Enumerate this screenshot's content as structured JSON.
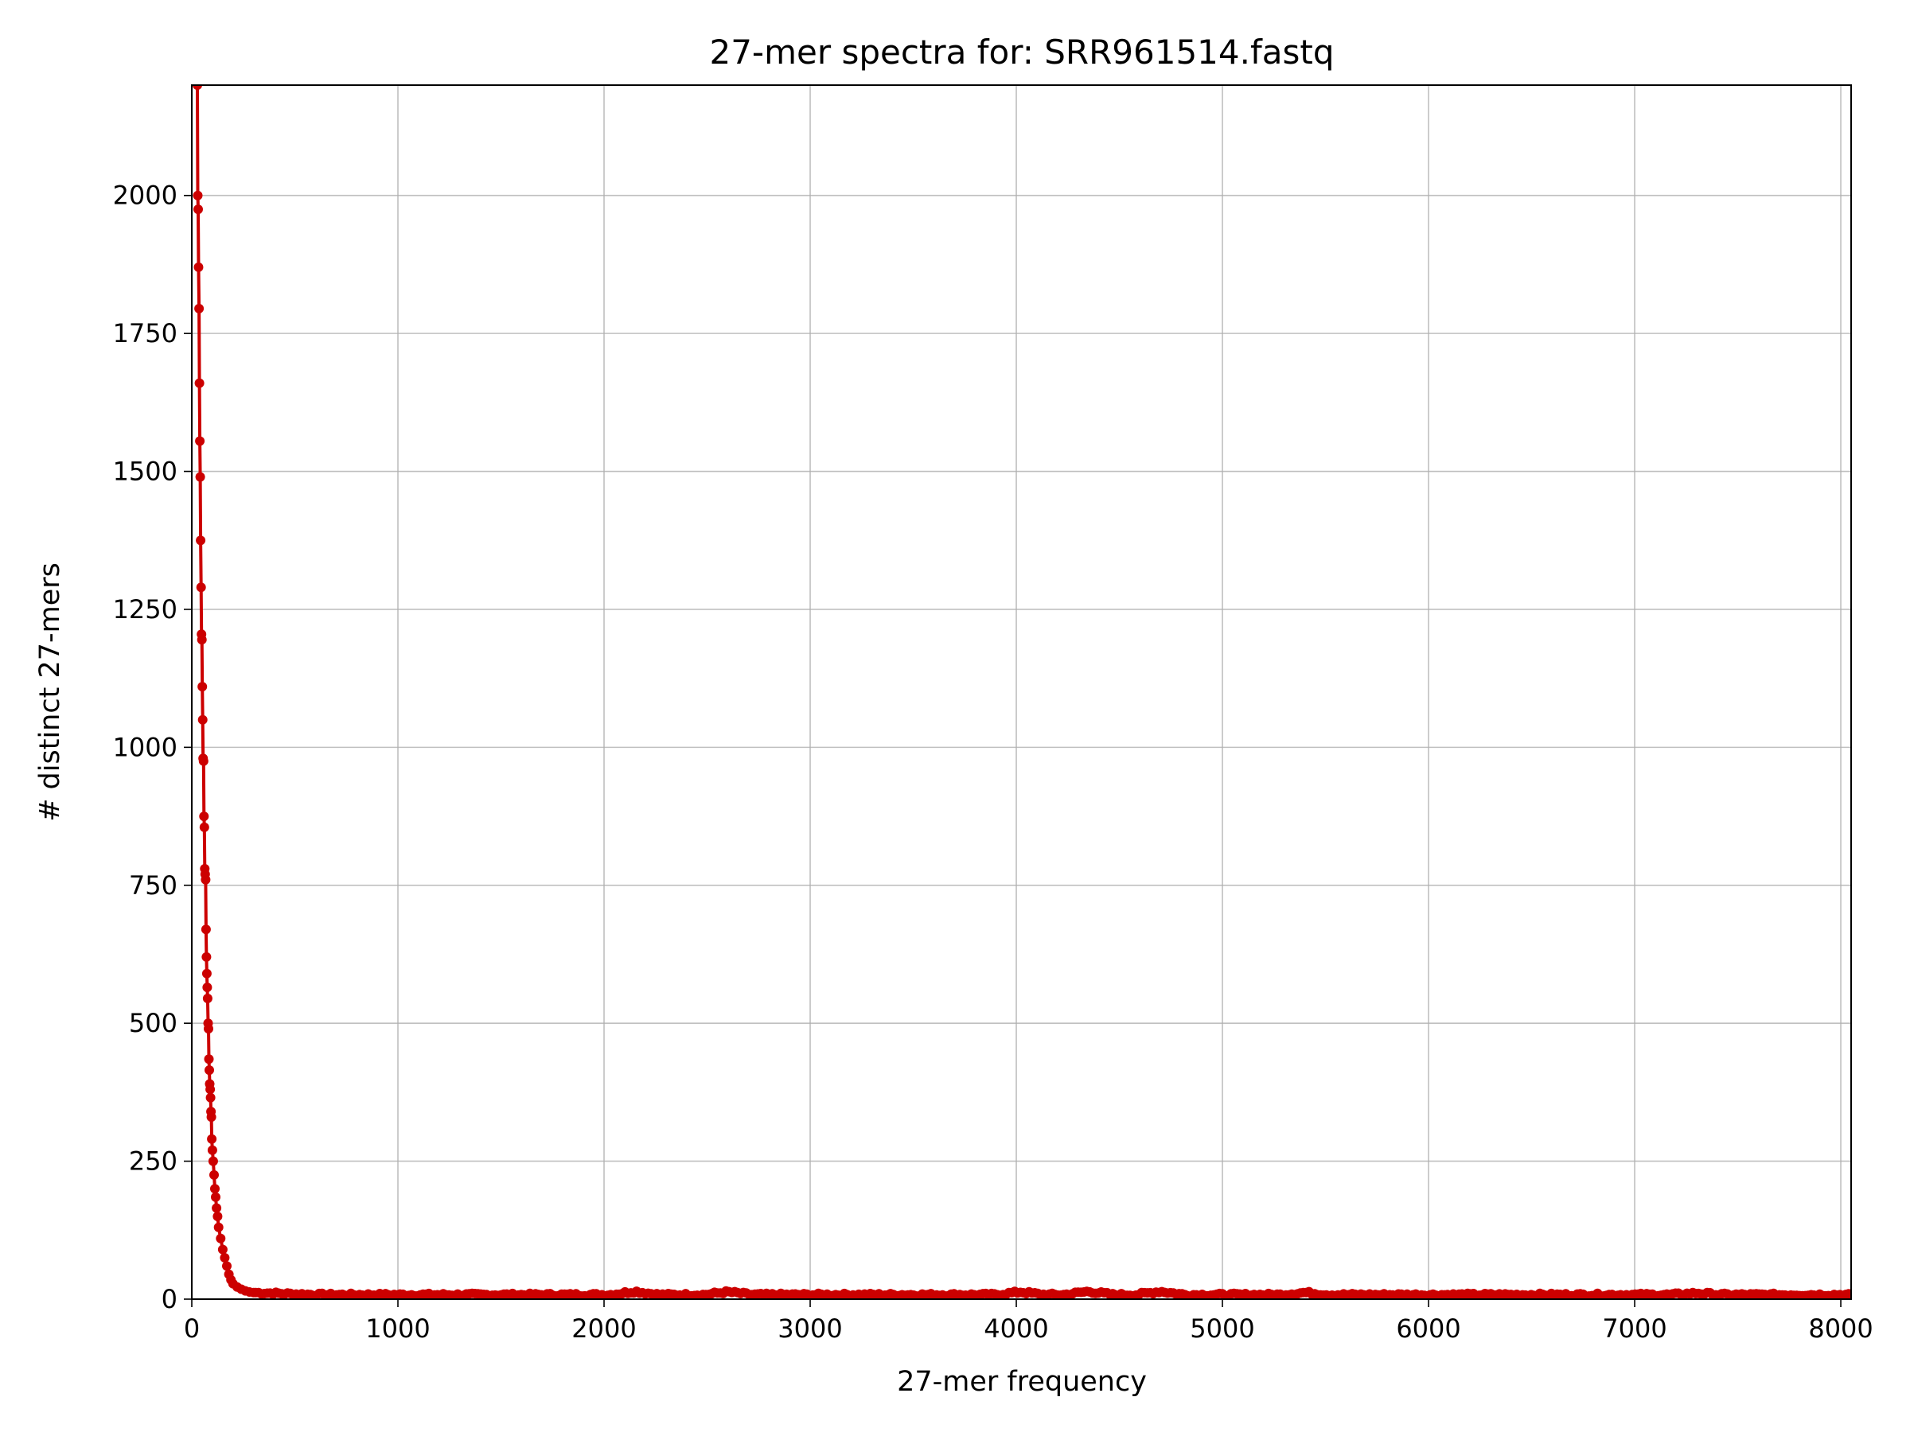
{
  "chart_data": {
    "type": "line",
    "title": "27-mer spectra for: SRR961514.fastq",
    "xlabel": "27-mer frequency",
    "ylabel": "# distinct 27-mers",
    "xlim": [
      0,
      8050
    ],
    "ylim": [
      0,
      2200
    ],
    "x_ticks": [
      0,
      1000,
      2000,
      3000,
      4000,
      5000,
      6000,
      7000,
      8000
    ],
    "y_ticks": [
      0,
      250,
      500,
      750,
      1000,
      1250,
      1500,
      1750,
      2000
    ],
    "grid": true,
    "markers": true,
    "color": "#cc0000",
    "peak_series": {
      "x": [
        27,
        29,
        31,
        33,
        35,
        37,
        39,
        41,
        43,
        45,
        47,
        49,
        51,
        53,
        55,
        57,
        59,
        61,
        63,
        65,
        67,
        69,
        71,
        73,
        75,
        77,
        79,
        81,
        83,
        85,
        87,
        89,
        91,
        93,
        95,
        97,
        100,
        104,
        108,
        112,
        116,
        120,
        125,
        130,
        140,
        150,
        160,
        170,
        180,
        190,
        200,
        220,
        240,
        260,
        280,
        300
      ],
      "values": [
        2200,
        2000,
        1975,
        1870,
        1795,
        1660,
        1555,
        1490,
        1375,
        1290,
        1205,
        1195,
        1110,
        1050,
        980,
        975,
        875,
        855,
        780,
        770,
        760,
        670,
        620,
        590,
        565,
        545,
        500,
        490,
        435,
        415,
        390,
        380,
        365,
        340,
        330,
        290,
        270,
        250,
        225,
        200,
        185,
        165,
        150,
        130,
        110,
        90,
        75,
        60,
        45,
        35,
        28,
        22,
        18,
        15,
        13,
        12
      ]
    },
    "tail_level_approx": 8,
    "tail_bumps": [
      {
        "x": 2150,
        "value": 14
      },
      {
        "x": 2600,
        "value": 13
      },
      {
        "x": 4020,
        "value": 13
      },
      {
        "x": 4350,
        "value": 14
      },
      {
        "x": 4700,
        "value": 14
      },
      {
        "x": 5400,
        "value": 12
      },
      {
        "x": 7300,
        "value": 11
      }
    ]
  }
}
